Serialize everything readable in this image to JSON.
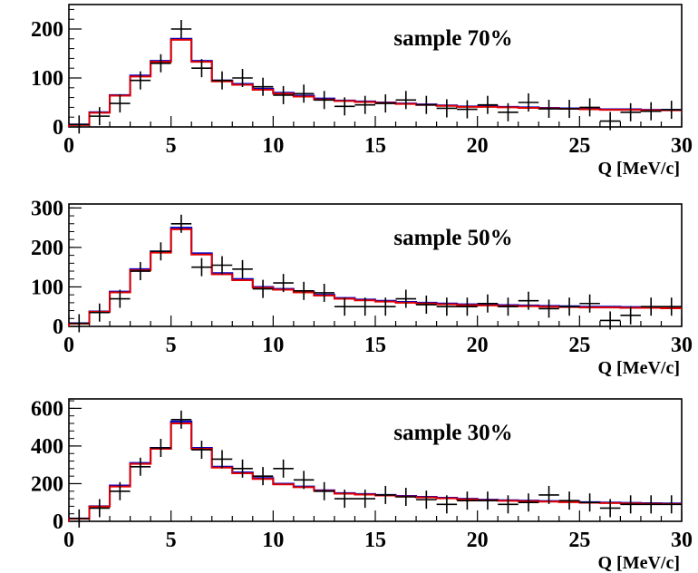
{
  "chart_data": [
    {
      "type": "histogram",
      "title": "sample 70%",
      "xlabel": "Q [MeV/c]",
      "ylabel": "",
      "xlim": [
        0,
        30
      ],
      "ylim": [
        0,
        250
      ],
      "xticks": [
        0,
        5,
        10,
        15,
        20,
        25,
        30
      ],
      "yticks": [
        0,
        100,
        200
      ],
      "bin_edges": [
        0,
        1,
        2,
        3,
        4,
        5,
        6,
        7,
        8,
        9,
        10,
        11,
        12,
        13,
        14,
        15,
        16,
        17,
        18,
        19,
        20,
        21,
        22,
        23,
        24,
        25,
        26,
        27,
        28,
        29,
        30
      ],
      "series": [
        {
          "style": "histogram-line",
          "color": "#0000cc",
          "values": [
            5,
            30,
            65,
            105,
            135,
            180,
            135,
            95,
            88,
            78,
            70,
            64,
            58,
            54,
            52,
            50,
            48,
            46,
            44,
            42,
            42,
            41,
            40,
            39,
            38,
            37,
            36,
            36,
            35,
            35
          ]
        },
        {
          "style": "histogram-line",
          "color": "#e00000",
          "values": [
            4,
            29,
            64,
            103,
            133,
            178,
            133,
            93,
            86,
            76,
            68,
            62,
            56,
            53,
            51,
            49,
            47,
            45,
            43,
            41,
            41,
            40,
            39,
            38,
            37,
            36,
            35,
            35,
            34,
            34
          ]
        },
        {
          "style": "data-points",
          "color": "#000000",
          "values": [
            5,
            22,
            48,
            95,
            130,
            200,
            120,
            95,
            100,
            82,
            65,
            68,
            55,
            42,
            45,
            48,
            55,
            45,
            38,
            36,
            45,
            30,
            50,
            37,
            37,
            40,
            12,
            30,
            32,
            35
          ]
        }
      ]
    },
    {
      "type": "histogram",
      "title": "sample 50%",
      "xlabel": "Q [MeV/c]",
      "ylabel": "",
      "xlim": [
        0,
        30
      ],
      "ylim": [
        0,
        310
      ],
      "xticks": [
        0,
        5,
        10,
        15,
        20,
        25,
        30
      ],
      "yticks": [
        0,
        100,
        200,
        300
      ],
      "bin_edges": [
        0,
        1,
        2,
        3,
        4,
        5,
        6,
        7,
        8,
        9,
        10,
        11,
        12,
        13,
        14,
        15,
        16,
        17,
        18,
        19,
        20,
        21,
        22,
        23,
        24,
        25,
        26,
        27,
        28,
        29,
        30
      ],
      "series": [
        {
          "style": "histogram-line",
          "color": "#0000cc",
          "values": [
            8,
            38,
            88,
            145,
            190,
            250,
            185,
            135,
            120,
            100,
            95,
            88,
            80,
            72,
            68,
            65,
            62,
            60,
            58,
            56,
            55,
            54,
            53,
            52,
            51,
            50,
            50,
            49,
            49,
            48
          ]
        },
        {
          "style": "histogram-line",
          "color": "#e00000",
          "values": [
            7,
            37,
            86,
            142,
            187,
            246,
            182,
            132,
            117,
            98,
            93,
            86,
            78,
            70,
            66,
            63,
            60,
            58,
            56,
            54,
            53,
            52,
            51,
            50,
            49,
            48,
            48,
            47,
            47,
            46
          ]
        },
        {
          "style": "data-points",
          "color": "#000000",
          "values": [
            8,
            35,
            70,
            140,
            190,
            260,
            150,
            155,
            145,
            95,
            110,
            90,
            85,
            50,
            50,
            50,
            70,
            55,
            50,
            50,
            58,
            50,
            65,
            45,
            50,
            58,
            15,
            28,
            50,
            50
          ]
        }
      ]
    },
    {
      "type": "histogram",
      "title": "sample 30%",
      "xlabel": "Q [MeV/c]",
      "ylabel": "",
      "xlim": [
        0,
        30
      ],
      "ylim": [
        0,
        650
      ],
      "xticks": [
        0,
        5,
        10,
        15,
        20,
        25,
        30
      ],
      "yticks": [
        0,
        200,
        400,
        600
      ],
      "bin_edges": [
        0,
        1,
        2,
        3,
        4,
        5,
        6,
        7,
        8,
        9,
        10,
        11,
        12,
        13,
        14,
        15,
        16,
        17,
        18,
        19,
        20,
        21,
        22,
        23,
        24,
        25,
        26,
        27,
        28,
        29,
        30
      ],
      "series": [
        {
          "style": "histogram-line",
          "color": "#0000cc",
          "values": [
            15,
            80,
            190,
            310,
            390,
            530,
            390,
            290,
            260,
            230,
            200,
            185,
            165,
            150,
            145,
            140,
            135,
            130,
            125,
            120,
            115,
            112,
            110,
            108,
            105,
            102,
            100,
            98,
            96,
            95
          ]
        },
        {
          "style": "histogram-line",
          "color": "#e00000",
          "values": [
            14,
            78,
            185,
            305,
            385,
            520,
            385,
            285,
            255,
            225,
            196,
            181,
            162,
            147,
            142,
            137,
            132,
            127,
            122,
            117,
            112,
            109,
            107,
            105,
            102,
            99,
            97,
            95,
            93,
            92
          ]
        },
        {
          "style": "data-points",
          "color": "#000000",
          "values": [
            15,
            70,
            160,
            290,
            390,
            540,
            380,
            330,
            280,
            240,
            280,
            220,
            160,
            120,
            120,
            140,
            130,
            115,
            90,
            110,
            110,
            90,
            100,
            140,
            110,
            100,
            70,
            90,
            90,
            90
          ]
        }
      ]
    }
  ]
}
